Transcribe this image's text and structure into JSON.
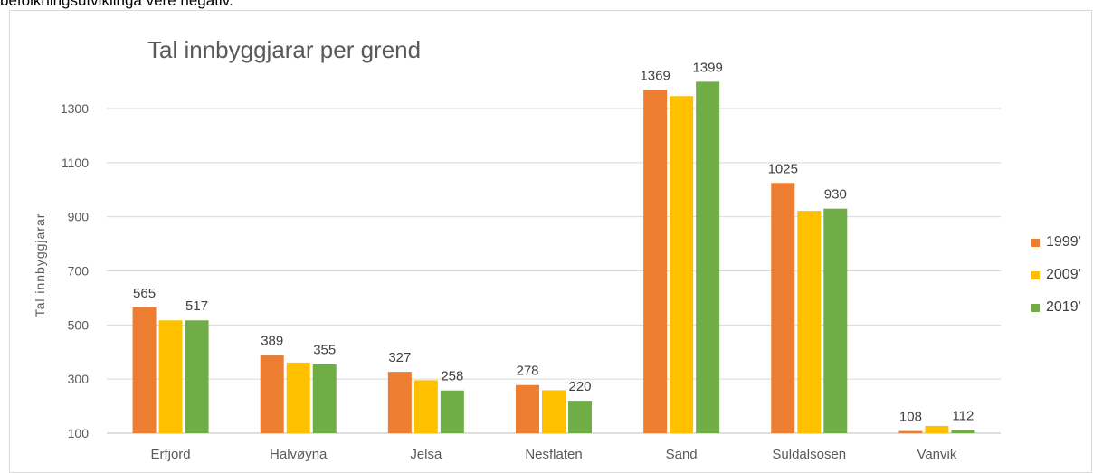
{
  "top_text": "befolkningsutviklinga vere negativ.",
  "colors": {
    "1999'": "#ed7d31",
    "2009'": "#ffc000",
    "2019'": "#70ad47"
  },
  "chart_data": {
    "type": "bar",
    "title": "Tal innbyggjarar per grend",
    "xlabel": "",
    "ylabel": "Tal innbyggjarar",
    "ylim": [
      100,
      1400
    ],
    "yticks": [
      100,
      300,
      500,
      700,
      900,
      1100,
      1300
    ],
    "grid": true,
    "legend_position": "right",
    "categories": [
      "Erfjord",
      "Halvøyna",
      "Jelsa",
      "Nesflaten",
      "Sand",
      "Suldalsosen",
      "Vanvik"
    ],
    "series": [
      {
        "name": "1999'",
        "color": "#ed7d31",
        "values": [
          565,
          389,
          327,
          278,
          1369,
          1025,
          108
        ]
      },
      {
        "name": "2009'",
        "color": "#ffc000",
        "values": [
          517,
          361,
          296,
          259,
          1346,
          922,
          127
        ]
      },
      {
        "name": "2019'",
        "color": "#70ad47",
        "values": [
          517,
          355,
          258,
          220,
          1399,
          930,
          112
        ]
      }
    ],
    "data_labels": [
      {
        "category": "Erfjord",
        "series": "1999'",
        "text": "565"
      },
      {
        "category": "Erfjord",
        "series": "2019'",
        "text": "517"
      },
      {
        "category": "Halvøyna",
        "series": "1999'",
        "text": "389"
      },
      {
        "category": "Halvøyna",
        "series": "2019'",
        "text": "355"
      },
      {
        "category": "Jelsa",
        "series": "1999'",
        "text": "327"
      },
      {
        "category": "Jelsa",
        "series": "2019'",
        "text": "258"
      },
      {
        "category": "Nesflaten",
        "series": "1999'",
        "text": "278"
      },
      {
        "category": "Nesflaten",
        "series": "2019'",
        "text": "220"
      },
      {
        "category": "Sand",
        "series": "1999'",
        "text": "1369"
      },
      {
        "category": "Sand",
        "series": "2019'",
        "text": "1399"
      },
      {
        "category": "Suldalsosen",
        "series": "1999'",
        "text": "1025"
      },
      {
        "category": "Suldalsosen",
        "series": "2019'",
        "text": "930"
      },
      {
        "category": "Vanvik",
        "series": "1999'",
        "text": "108"
      },
      {
        "category": "Vanvik",
        "series": "2019'",
        "text": "112"
      }
    ]
  }
}
